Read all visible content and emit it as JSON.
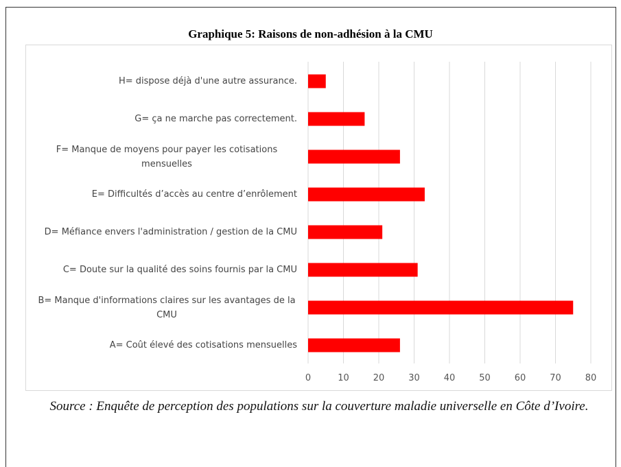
{
  "chart_data": {
    "type": "bar",
    "orientation": "horizontal",
    "title": "Graphique  5: Raisons de non-adhésion à la CMU",
    "categories": [
      "H= dispose déjà d'une autre assurance.",
      "G= ça ne marche pas correctement.",
      "F= Manque de moyens pour payer les cotisations mensuelles",
      "E= Difficultés d’accès au centre d’enrôlement",
      "D= Méfiance envers l'administration / gestion de la CMU",
      "C= Doute sur la qualité des soins fournis par la CMU",
      "B= Manque d'informations claires sur les avantages de la CMU",
      "A= Coût élevé des cotisations mensuelles"
    ],
    "values": [
      5,
      16,
      26,
      33,
      21,
      31,
      75,
      26
    ],
    "color": "#ff0000",
    "xlim": [
      0,
      80
    ],
    "xticks": [
      0,
      10,
      20,
      30,
      40,
      50,
      60,
      70,
      80
    ],
    "grid": true,
    "source": "Source : Enquête de perception des populations sur la couverture maladie universelle en Côte d’Ivoire."
  }
}
